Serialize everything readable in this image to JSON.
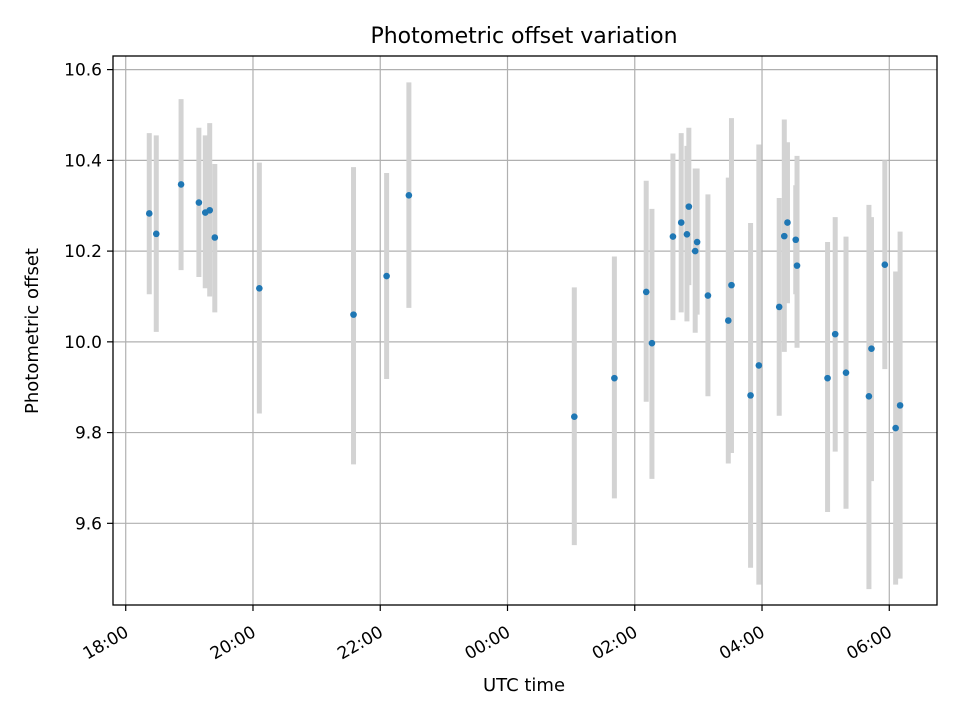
{
  "chart_data": {
    "type": "scatter",
    "title": "Photometric offset variation",
    "xlabel": "UTC time",
    "ylabel": "Photometric offset",
    "x_unit": "hours since 18:00 UTC",
    "xlim": [
      -0.2,
      12.75
    ],
    "ylim": [
      9.42,
      10.63
    ],
    "grid": true,
    "x_ticks": [
      {
        "value": 0,
        "label": "18:00"
      },
      {
        "value": 2,
        "label": "20:00"
      },
      {
        "value": 4,
        "label": "22:00"
      },
      {
        "value": 6,
        "label": "00:00"
      },
      {
        "value": 8,
        "label": "02:00"
      },
      {
        "value": 10,
        "label": "04:00"
      },
      {
        "value": 12,
        "label": "06:00"
      }
    ],
    "y_ticks": [
      {
        "value": 9.6,
        "label": "9.6"
      },
      {
        "value": 9.8,
        "label": "9.8"
      },
      {
        "value": 10.0,
        "label": "10.0"
      },
      {
        "value": 10.2,
        "label": "10.2"
      },
      {
        "value": 10.4,
        "label": "10.4"
      },
      {
        "value": 10.6,
        "label": "10.6"
      }
    ],
    "marker_color": "#1f77b4",
    "errorbar_color": "#d3d3d3",
    "points": [
      {
        "x": 0.37,
        "y": 10.283,
        "lo": 10.105,
        "hi": 10.46
      },
      {
        "x": 0.48,
        "y": 10.238,
        "lo": 10.022,
        "hi": 10.455
      },
      {
        "x": 0.87,
        "y": 10.347,
        "lo": 10.158,
        "hi": 10.535
      },
      {
        "x": 1.15,
        "y": 10.307,
        "lo": 10.143,
        "hi": 10.472
      },
      {
        "x": 1.25,
        "y": 10.285,
        "lo": 10.118,
        "hi": 10.455
      },
      {
        "x": 1.32,
        "y": 10.29,
        "lo": 10.1,
        "hi": 10.482
      },
      {
        "x": 1.4,
        "y": 10.23,
        "lo": 10.065,
        "hi": 10.392
      },
      {
        "x": 2.1,
        "y": 10.118,
        "lo": 9.842,
        "hi": 10.395
      },
      {
        "x": 3.58,
        "y": 10.06,
        "lo": 9.73,
        "hi": 10.385
      },
      {
        "x": 4.1,
        "y": 10.145,
        "lo": 9.918,
        "hi": 10.372
      },
      {
        "x": 4.45,
        "y": 10.323,
        "lo": 10.075,
        "hi": 10.572
      },
      {
        "x": 7.05,
        "y": 9.835,
        "lo": 9.552,
        "hi": 10.12
      },
      {
        "x": 7.68,
        "y": 9.92,
        "lo": 9.655,
        "hi": 10.188
      },
      {
        "x": 8.18,
        "y": 10.11,
        "lo": 9.868,
        "hi": 10.355
      },
      {
        "x": 8.27,
        "y": 9.997,
        "lo": 9.698,
        "hi": 10.293
      },
      {
        "x": 8.6,
        "y": 10.232,
        "lo": 10.048,
        "hi": 10.415
      },
      {
        "x": 8.73,
        "y": 10.263,
        "lo": 10.065,
        "hi": 10.46
      },
      {
        "x": 8.82,
        "y": 10.237,
        "lo": 10.045,
        "hi": 10.432
      },
      {
        "x": 8.85,
        "y": 10.298,
        "lo": 10.125,
        "hi": 10.472
      },
      {
        "x": 8.95,
        "y": 10.2,
        "lo": 10.02,
        "hi": 10.382
      },
      {
        "x": 8.98,
        "y": 10.22,
        "lo": 10.06,
        "hi": 10.382
      },
      {
        "x": 9.15,
        "y": 10.102,
        "lo": 9.88,
        "hi": 10.325
      },
      {
        "x": 9.47,
        "y": 10.047,
        "lo": 9.732,
        "hi": 10.362
      },
      {
        "x": 9.52,
        "y": 10.125,
        "lo": 9.755,
        "hi": 10.493
      },
      {
        "x": 9.82,
        "y": 9.882,
        "lo": 9.502,
        "hi": 10.262
      },
      {
        "x": 9.95,
        "y": 9.948,
        "lo": 9.465,
        "hi": 10.435
      },
      {
        "x": 10.27,
        "y": 10.077,
        "lo": 9.837,
        "hi": 10.317
      },
      {
        "x": 10.35,
        "y": 10.233,
        "lo": 9.978,
        "hi": 10.49
      },
      {
        "x": 10.4,
        "y": 10.263,
        "lo": 10.085,
        "hi": 10.44
      },
      {
        "x": 10.53,
        "y": 10.225,
        "lo": 10.105,
        "hi": 10.345
      },
      {
        "x": 10.55,
        "y": 10.168,
        "lo": 9.987,
        "hi": 10.41
      },
      {
        "x": 11.03,
        "y": 9.92,
        "lo": 9.625,
        "hi": 10.22
      },
      {
        "x": 11.15,
        "y": 10.017,
        "lo": 9.758,
        "hi": 10.275
      },
      {
        "x": 11.32,
        "y": 9.932,
        "lo": 9.632,
        "hi": 10.232
      },
      {
        "x": 11.68,
        "y": 9.88,
        "lo": 9.455,
        "hi": 10.302
      },
      {
        "x": 11.72,
        "y": 9.985,
        "lo": 9.693,
        "hi": 10.275
      },
      {
        "x": 11.93,
        "y": 10.17,
        "lo": 9.94,
        "hi": 10.4
      },
      {
        "x": 12.1,
        "y": 9.81,
        "lo": 9.465,
        "hi": 10.155
      },
      {
        "x": 12.17,
        "y": 9.86,
        "lo": 9.478,
        "hi": 10.243
      }
    ]
  }
}
